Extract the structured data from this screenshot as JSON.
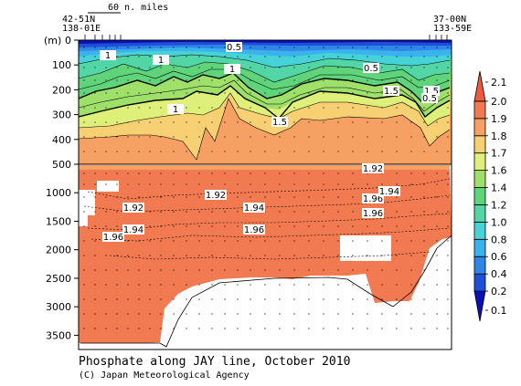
{
  "chart_data": {
    "type": "heatmap",
    "title": "Phosphate along JAY line, October 2010",
    "credit": "(C) Japan Meteorological Agency",
    "ylabel": "(m)",
    "scale_label": "60 n. miles",
    "left_station": {
      "lat": "42-51N",
      "lon": "138-01E"
    },
    "right_station": {
      "lat": "37-00N",
      "lon": "133-59E"
    },
    "upper_panel": {
      "depth_range": [
        0,
        500
      ],
      "ticks": [
        0,
        100,
        200,
        300,
        400,
        500
      ]
    },
    "lower_panel": {
      "depth_range": [
        500,
        3750
      ],
      "ticks": [
        1000,
        1500,
        2000,
        2500,
        3000,
        3500
      ]
    },
    "colorbar_levels": [
      0.1,
      0.2,
      0.4,
      0.6,
      0.8,
      1.0,
      1.2,
      1.4,
      1.6,
      1.7,
      1.8,
      1.9,
      2.0,
      2.1
    ],
    "colorbar_colors": [
      "#0a10b8",
      "#1f4fd8",
      "#2f86e6",
      "#39b2ee",
      "#47d2d8",
      "#52d6a6",
      "#5fd47a",
      "#9ee06a",
      "#dff07a",
      "#f6d072",
      "#f6a064",
      "#f27a50",
      "#ee5a3c"
    ],
    "contour_labels_upper": [
      "0.5",
      "1",
      "1",
      "1",
      "1",
      "0.5",
      "1",
      "1.5",
      "1.5",
      "1.5",
      "0.5"
    ],
    "contour_labels_lower": [
      "1.92",
      "1.92",
      "1.92",
      "1.94",
      "1.94",
      "1.96",
      "1.96",
      "1.96",
      "1.94",
      "1.96",
      "1.96"
    ]
  }
}
